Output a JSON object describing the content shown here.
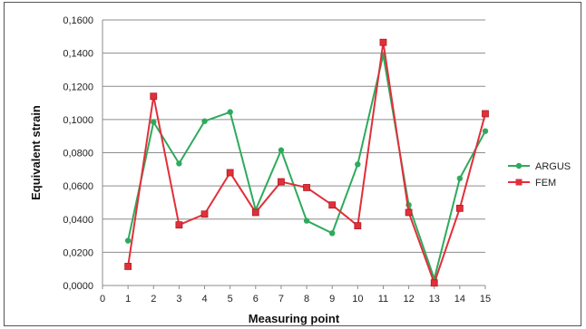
{
  "chart_data": {
    "type": "line",
    "xlabel": "Measuring point",
    "ylabel": "Equivalent  strain",
    "xlim": [
      0,
      15
    ],
    "ylim": [
      0,
      0.16
    ],
    "x_ticks": [
      "0",
      "1",
      "2",
      "3",
      "4",
      "5",
      "6",
      "7",
      "8",
      "9",
      "10",
      "11",
      "12",
      "13",
      "14",
      "15"
    ],
    "y_ticks": [
      "0,0000",
      "0,0200",
      "0,0400",
      "0,0600",
      "0,0800",
      "0,1000",
      "0,1200",
      "0,1400",
      "0,1600"
    ],
    "grid": "horizontal",
    "legend_position": "right",
    "x": [
      1,
      2,
      3,
      4,
      5,
      6,
      7,
      8,
      9,
      10,
      11,
      12,
      13,
      14,
      15
    ],
    "series": [
      {
        "name": "ARGUS",
        "color": "#2eaa5c",
        "marker": "circle",
        "values": [
          0.027,
          0.0985,
          0.0735,
          0.099,
          0.1045,
          0.0455,
          0.0815,
          0.039,
          0.0315,
          0.073,
          0.139,
          0.0485,
          0.004,
          0.0645,
          0.093
        ]
      },
      {
        "name": "FEM",
        "color": "#e0303a",
        "marker": "square",
        "values": [
          0.0115,
          0.114,
          0.0365,
          0.043,
          0.068,
          0.044,
          0.0625,
          0.059,
          0.0485,
          0.036,
          0.1465,
          0.044,
          0.0015,
          0.0465,
          0.1035
        ]
      }
    ]
  }
}
